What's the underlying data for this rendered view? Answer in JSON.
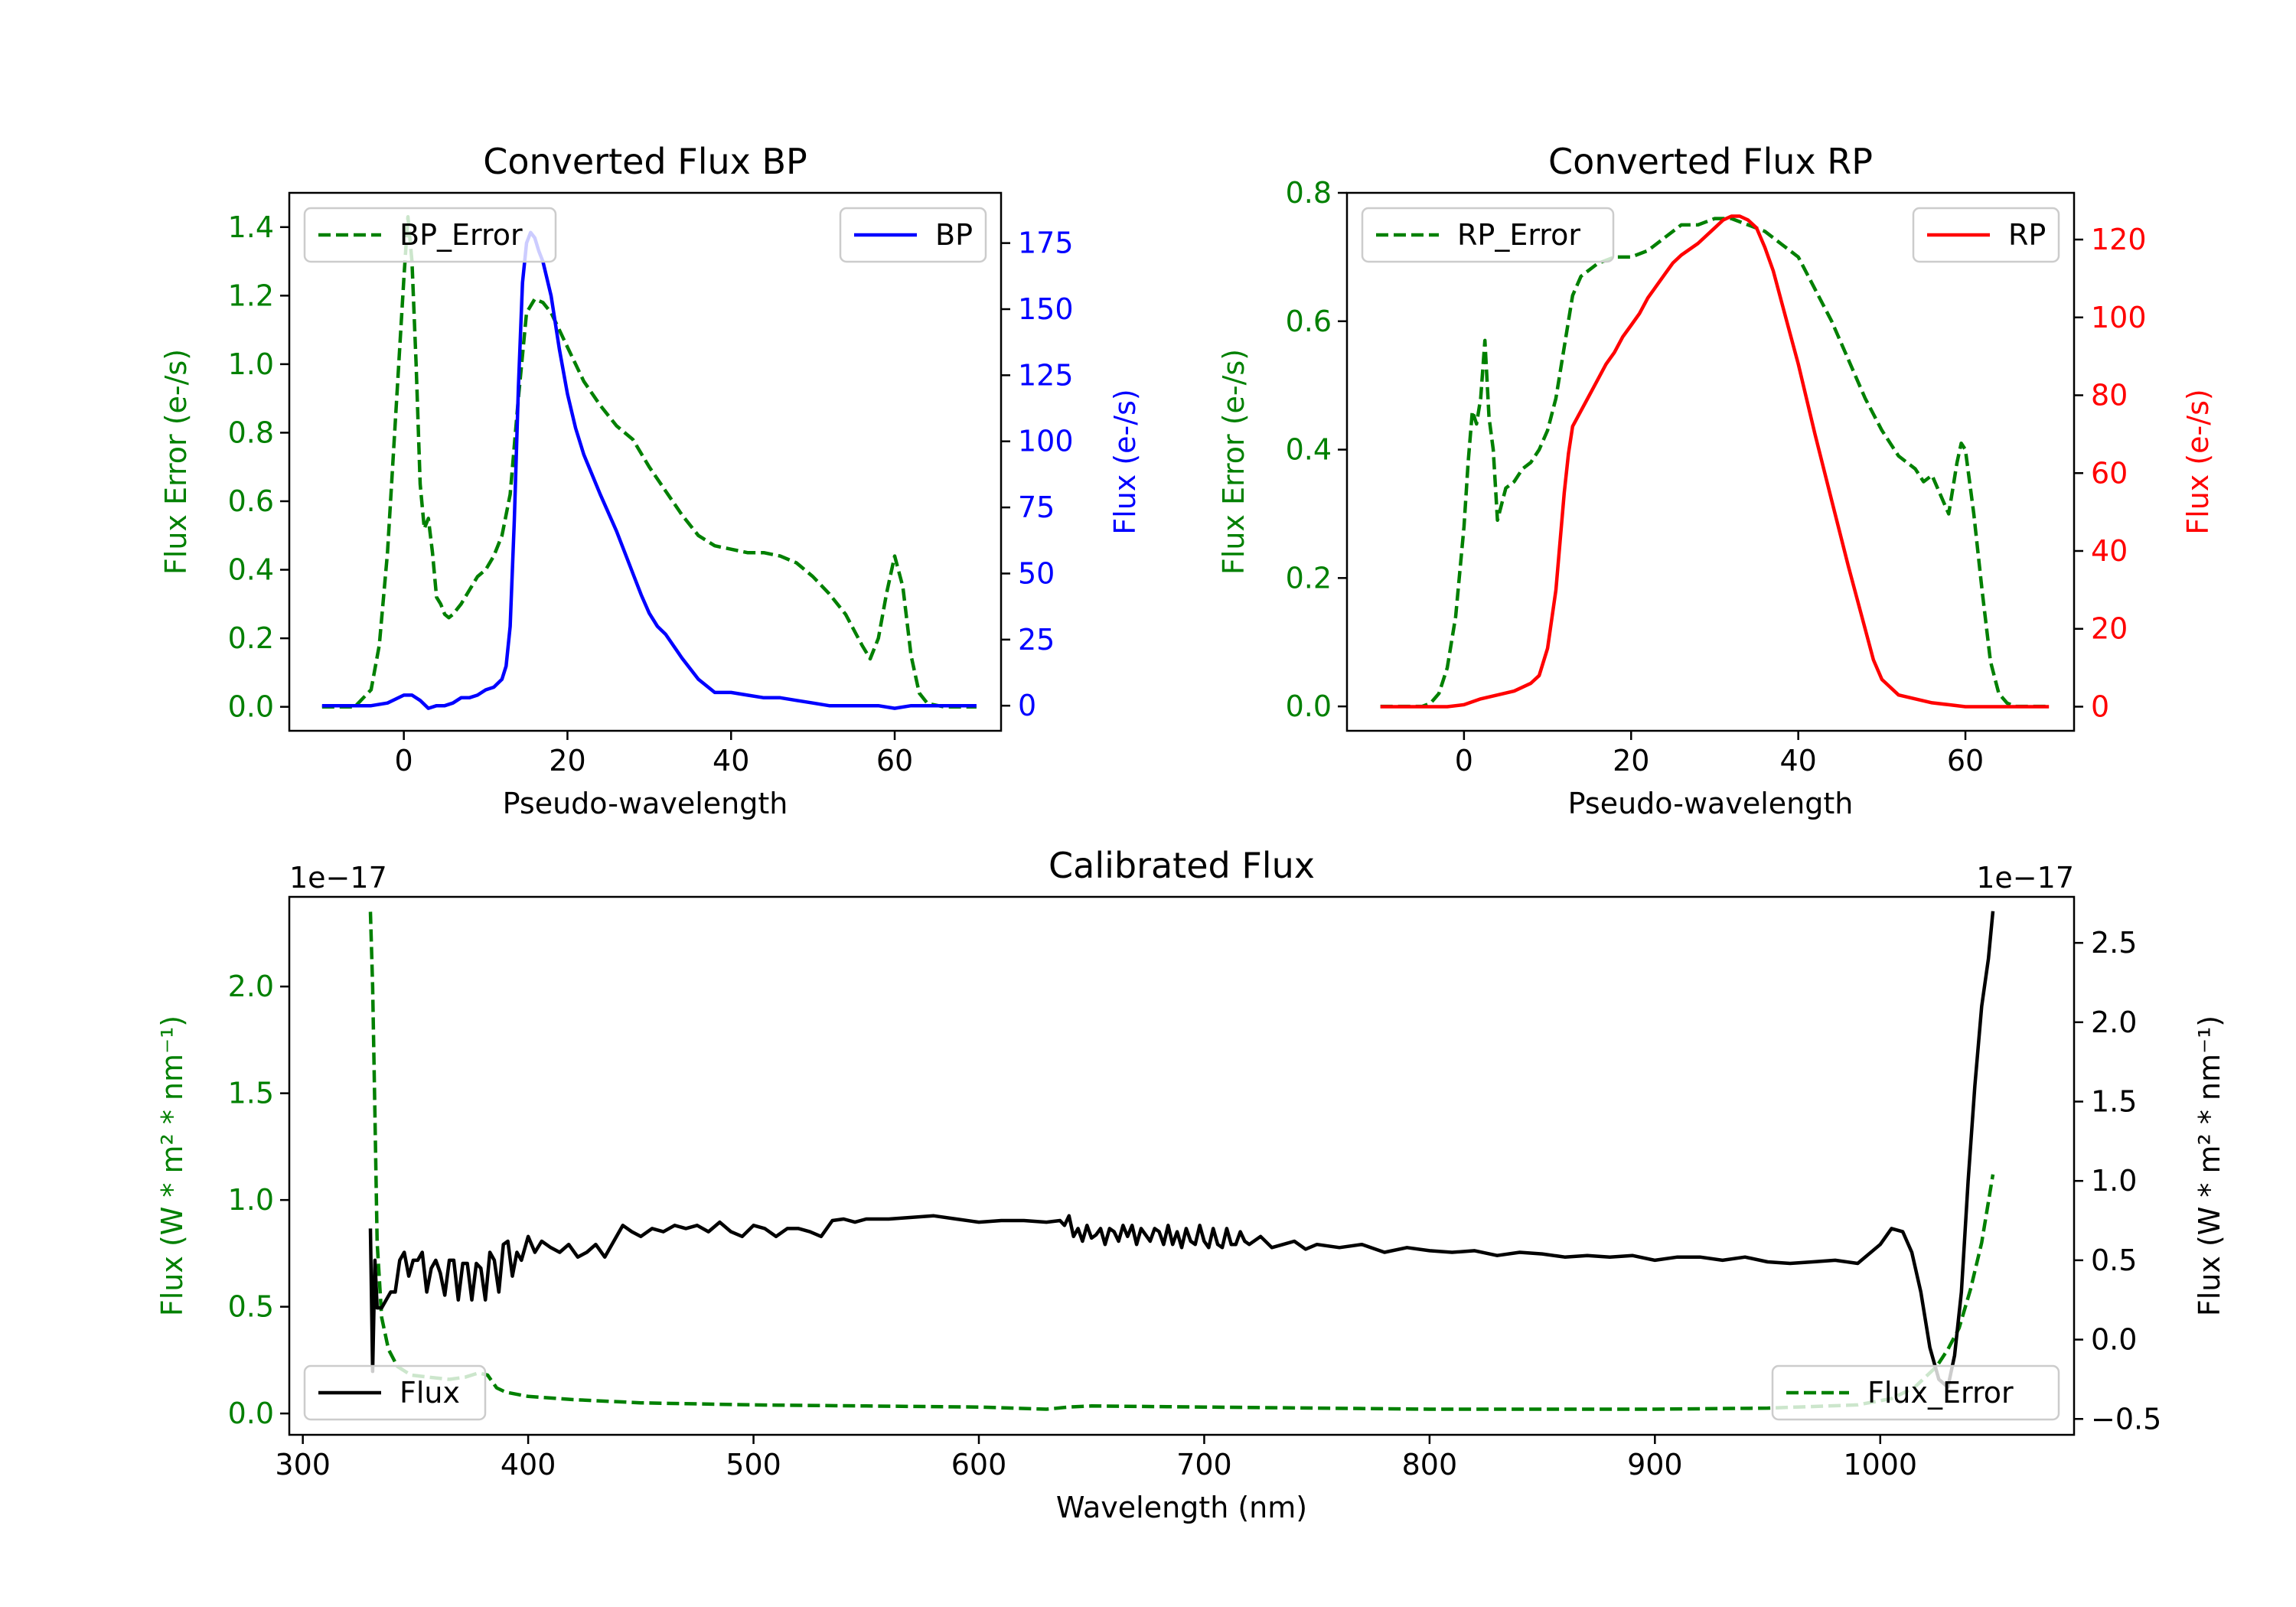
{
  "chart_data": [
    {
      "id": "bp",
      "type": "line",
      "title": "Converted Flux BP",
      "xlabel": "Pseudo-wavelength",
      "ylabel_left": "Flux Error (e-/s)",
      "ylabel_right": "Flux (e-/s)",
      "xlim": [
        -14,
        73
      ],
      "ylim_left": [
        -0.07,
        1.5
      ],
      "ylim_right": [
        -9.5,
        194
      ],
      "xticks": [
        0,
        20,
        40,
        60
      ],
      "yticks_left": [
        "0.0",
        "0.2",
        "0.4",
        "0.6",
        "0.8",
        "1.0",
        "1.2",
        "1.4"
      ],
      "yticks_right": [
        "0",
        "25",
        "50",
        "75",
        "100",
        "125",
        "150",
        "175"
      ],
      "colors": {
        "left": "#008000",
        "right": "#0000ff"
      },
      "series": [
        {
          "name": "BP_Error",
          "axis": "left",
          "style": "dashed",
          "color": "#008000",
          "x": [
            -10,
            -6,
            -4,
            -3,
            -2,
            -1,
            0,
            0.5,
            1,
            1.5,
            2,
            2.5,
            3,
            3.5,
            4,
            4.5,
            5,
            5.5,
            6,
            7,
            8,
            9,
            10,
            11,
            12,
            13,
            14,
            15,
            16,
            17,
            18,
            19,
            20,
            22,
            24,
            26,
            28,
            30,
            32,
            34,
            36,
            38,
            40,
            42,
            44,
            46,
            48,
            50,
            52,
            54,
            56,
            57,
            58,
            59,
            60,
            61,
            62,
            63,
            64,
            66,
            70
          ],
          "y": [
            0,
            0,
            0.05,
            0.18,
            0.45,
            0.85,
            1.25,
            1.43,
            1.3,
            1.0,
            0.65,
            0.52,
            0.55,
            0.45,
            0.32,
            0.3,
            0.27,
            0.26,
            0.27,
            0.3,
            0.34,
            0.38,
            0.4,
            0.44,
            0.5,
            0.62,
            0.9,
            1.15,
            1.19,
            1.18,
            1.15,
            1.1,
            1.05,
            0.95,
            0.88,
            0.82,
            0.78,
            0.7,
            0.63,
            0.56,
            0.5,
            0.47,
            0.46,
            0.45,
            0.45,
            0.44,
            0.42,
            0.38,
            0.33,
            0.27,
            0.18,
            0.14,
            0.2,
            0.33,
            0.44,
            0.35,
            0.15,
            0.04,
            0.01,
            0,
            0
          ]
        },
        {
          "name": "BP",
          "axis": "right",
          "style": "solid",
          "color": "#0000ff",
          "x": [
            -10,
            -4,
            -2,
            0,
            1,
            2,
            3,
            4,
            5,
            6,
            7,
            8,
            9,
            10,
            11,
            12,
            12.5,
            13,
            13.5,
            14,
            14.5,
            15,
            15.5,
            16,
            16.5,
            17,
            18,
            19,
            20,
            21,
            22,
            24,
            26,
            28,
            29,
            30,
            31,
            32,
            34,
            36,
            38,
            40,
            42,
            44,
            46,
            48,
            50,
            52,
            54,
            56,
            58,
            60,
            62,
            64,
            66,
            68,
            70
          ],
          "y": [
            0,
            0,
            1,
            4,
            4,
            2,
            -1,
            0,
            0,
            1,
            3,
            3,
            4,
            6,
            7,
            10,
            15,
            30,
            70,
            120,
            160,
            175,
            179,
            177,
            172,
            168,
            155,
            135,
            118,
            105,
            95,
            80,
            66,
            50,
            42,
            35,
            30,
            27,
            18,
            10,
            5,
            5,
            4,
            3,
            3,
            2,
            1,
            0,
            0,
            0,
            0,
            -1,
            0,
            0,
            0,
            0,
            0
          ]
        }
      ],
      "legend": [
        {
          "label": "BP_Error",
          "position": "upper-left"
        },
        {
          "label": "BP",
          "position": "upper-right"
        }
      ]
    },
    {
      "id": "rp",
      "type": "line",
      "title": "Converted Flux RP",
      "xlabel": "Pseudo-wavelength",
      "ylabel_left": "Flux Error (e-/s)",
      "ylabel_right": "Flux (e-/s)",
      "xlim": [
        -14,
        73
      ],
      "ylim_left": [
        -0.038,
        0.8
      ],
      "ylim_right": [
        -6.2,
        132
      ],
      "xticks": [
        0,
        20,
        40,
        60
      ],
      "yticks_left": [
        "0.0",
        "0.2",
        "0.4",
        "0.6",
        "0.8"
      ],
      "yticks_right": [
        "0",
        "20",
        "40",
        "60",
        "80",
        "100",
        "120"
      ],
      "colors": {
        "left": "#008000",
        "right": "#ff0000"
      },
      "series": [
        {
          "name": "RP_Error",
          "axis": "left",
          "style": "dashed",
          "color": "#008000",
          "x": [
            -10,
            -5,
            -4,
            -3,
            -2,
            -1,
            0,
            0.5,
            1,
            1.5,
            2,
            2.5,
            3,
            3.5,
            4,
            5,
            6,
            7,
            8,
            9,
            10,
            11,
            12,
            13,
            14,
            16,
            18,
            20,
            22,
            24,
            26,
            28,
            30,
            32,
            34,
            36,
            38,
            40,
            42,
            44,
            46,
            48,
            50,
            52,
            54,
            55,
            56,
            57,
            58,
            58.5,
            59,
            59.5,
            60,
            61,
            62,
            63,
            64,
            65,
            66,
            70
          ],
          "y": [
            0,
            0,
            0.005,
            0.02,
            0.06,
            0.14,
            0.28,
            0.38,
            0.46,
            0.44,
            0.48,
            0.57,
            0.45,
            0.4,
            0.29,
            0.34,
            0.35,
            0.37,
            0.38,
            0.4,
            0.43,
            0.48,
            0.56,
            0.64,
            0.67,
            0.69,
            0.7,
            0.7,
            0.71,
            0.73,
            0.75,
            0.75,
            0.76,
            0.76,
            0.75,
            0.74,
            0.72,
            0.7,
            0.65,
            0.6,
            0.54,
            0.48,
            0.43,
            0.39,
            0.37,
            0.35,
            0.36,
            0.33,
            0.3,
            0.34,
            0.38,
            0.41,
            0.4,
            0.3,
            0.18,
            0.07,
            0.02,
            0.005,
            0,
            0
          ]
        },
        {
          "name": "RP",
          "axis": "right",
          "style": "solid",
          "color": "#ff0000",
          "x": [
            -10,
            -2,
            0,
            2,
            4,
            6,
            8,
            9,
            10,
            11,
            12,
            12.5,
            13,
            14,
            15,
            16,
            17,
            18,
            19,
            20,
            21,
            22,
            23,
            24,
            25,
            26,
            28,
            30,
            31,
            32,
            33,
            34,
            35,
            36,
            37,
            38,
            39,
            40,
            42,
            44,
            46,
            48,
            49,
            50,
            51,
            52,
            54,
            56,
            58,
            60,
            62,
            64,
            66,
            70
          ],
          "y": [
            0,
            0,
            0.5,
            2,
            3,
            4,
            6,
            8,
            15,
            30,
            55,
            65,
            72,
            76,
            80,
            84,
            88,
            91,
            95,
            98,
            101,
            105,
            108,
            111,
            114,
            116,
            119,
            123,
            125,
            126,
            126,
            125,
            123,
            118,
            112,
            104,
            96,
            88,
            70,
            53,
            36,
            20,
            12,
            7,
            5,
            3,
            2,
            1,
            0.5,
            0,
            0,
            0,
            0,
            0
          ]
        }
      ],
      "legend": [
        {
          "label": "RP_Error",
          "position": "upper-left"
        },
        {
          "label": "RP",
          "position": "upper-right"
        }
      ]
    },
    {
      "id": "cal",
      "type": "line",
      "title": "Calibrated Flux",
      "xlabel": "Wavelength (nm)",
      "ylabel_left": "Flux (W * m² * nm⁻¹)",
      "ylabel_right": "Flux (W * m² * nm⁻¹)",
      "offset_left": "1e−17",
      "offset_right": "1e−17",
      "xlim": [
        294,
        1086
      ],
      "ylim_left": [
        -0.1,
        2.42
      ],
      "ylim_right": [
        -0.6,
        2.79
      ],
      "xticks": [
        300,
        400,
        500,
        600,
        700,
        800,
        900,
        1000
      ],
      "yticks_left": [
        "0.0",
        "0.5",
        "1.0",
        "1.5",
        "2.0"
      ],
      "yticks_right": [
        "−0.5",
        "0.0",
        "0.5",
        "1.0",
        "1.5",
        "2.0",
        "2.5"
      ],
      "colors": {
        "left": "#008000",
        "right": "#000000"
      },
      "series": [
        {
          "name": "Flux_Error",
          "axis": "left",
          "style": "dashed",
          "color": "#008000",
          "x": [
            330,
            331,
            332,
            333,
            335,
            338,
            342,
            348,
            356,
            365,
            372,
            378,
            382,
            386,
            390,
            400,
            420,
            450,
            500,
            550,
            600,
            630,
            640,
            650,
            700,
            800,
            900,
            950,
            990,
            1005,
            1015,
            1025,
            1030,
            1035,
            1040,
            1045,
            1050
          ],
          "y": [
            2.35,
            2.0,
            1.4,
            0.8,
            0.45,
            0.3,
            0.22,
            0.18,
            0.17,
            0.16,
            0.17,
            0.19,
            0.18,
            0.12,
            0.1,
            0.08,
            0.065,
            0.05,
            0.04,
            0.035,
            0.03,
            0.02,
            0.03,
            0.035,
            0.03,
            0.02,
            0.02,
            0.025,
            0.04,
            0.07,
            0.12,
            0.22,
            0.3,
            0.4,
            0.58,
            0.8,
            1.12
          ]
        },
        {
          "name": "Flux",
          "axis": "right",
          "style": "solid",
          "color": "#000000",
          "x": [
            330,
            331,
            332,
            333,
            335,
            337,
            339,
            341,
            343,
            345,
            347,
            349,
            351,
            353,
            355,
            357,
            359,
            361,
            363,
            365,
            367,
            369,
            371,
            373,
            375,
            377,
            379,
            381,
            383,
            385,
            387,
            389,
            391,
            393,
            395,
            397,
            400,
            403,
            406,
            410,
            414,
            418,
            422,
            426,
            430,
            434,
            438,
            442,
            446,
            450,
            455,
            460,
            465,
            470,
            475,
            480,
            485,
            490,
            495,
            500,
            505,
            510,
            515,
            520,
            525,
            530,
            535,
            540,
            545,
            550,
            560,
            570,
            580,
            590,
            600,
            610,
            620,
            630,
            636,
            638,
            640,
            642,
            644,
            646,
            648,
            650,
            652,
            654,
            656,
            658,
            660,
            662,
            664,
            666,
            668,
            670,
            672,
            674,
            676,
            678,
            680,
            682,
            684,
            686,
            688,
            690,
            692,
            694,
            696,
            698,
            700,
            702,
            704,
            706,
            708,
            710,
            712,
            714,
            716,
            718,
            720,
            725,
            730,
            735,
            740,
            745,
            750,
            760,
            770,
            780,
            790,
            800,
            810,
            820,
            830,
            840,
            850,
            860,
            870,
            880,
            890,
            900,
            910,
            920,
            930,
            940,
            950,
            960,
            970,
            980,
            990,
            1000,
            1005,
            1010,
            1014,
            1018,
            1022,
            1026,
            1030,
            1033,
            1036,
            1039,
            1042,
            1045,
            1048,
            1050
          ],
          "y": [
            0.7,
            -0.2,
            0.5,
            0.2,
            0.2,
            0.25,
            0.3,
            0.3,
            0.5,
            0.55,
            0.4,
            0.5,
            0.5,
            0.55,
            0.3,
            0.45,
            0.5,
            0.42,
            0.28,
            0.5,
            0.5,
            0.25,
            0.48,
            0.48,
            0.25,
            0.48,
            0.45,
            0.25,
            0.55,
            0.5,
            0.3,
            0.6,
            0.62,
            0.4,
            0.55,
            0.5,
            0.65,
            0.55,
            0.62,
            0.58,
            0.55,
            0.6,
            0.52,
            0.55,
            0.6,
            0.52,
            0.62,
            0.72,
            0.68,
            0.65,
            0.7,
            0.68,
            0.72,
            0.7,
            0.72,
            0.68,
            0.74,
            0.68,
            0.65,
            0.72,
            0.7,
            0.65,
            0.7,
            0.7,
            0.68,
            0.65,
            0.75,
            0.76,
            0.74,
            0.76,
            0.76,
            0.77,
            0.78,
            0.76,
            0.74,
            0.75,
            0.75,
            0.74,
            0.75,
            0.72,
            0.78,
            0.65,
            0.7,
            0.62,
            0.72,
            0.64,
            0.66,
            0.7,
            0.6,
            0.7,
            0.68,
            0.62,
            0.72,
            0.65,
            0.72,
            0.6,
            0.7,
            0.66,
            0.62,
            0.7,
            0.68,
            0.6,
            0.72,
            0.6,
            0.68,
            0.58,
            0.7,
            0.62,
            0.6,
            0.72,
            0.62,
            0.58,
            0.7,
            0.6,
            0.58,
            0.7,
            0.6,
            0.6,
            0.68,
            0.62,
            0.6,
            0.65,
            0.58,
            0.6,
            0.62,
            0.57,
            0.6,
            0.58,
            0.6,
            0.55,
            0.58,
            0.56,
            0.55,
            0.56,
            0.53,
            0.55,
            0.54,
            0.52,
            0.53,
            0.52,
            0.53,
            0.5,
            0.52,
            0.52,
            0.5,
            0.52,
            0.49,
            0.48,
            0.49,
            0.5,
            0.48,
            0.6,
            0.7,
            0.68,
            0.55,
            0.3,
            -0.05,
            -0.25,
            -0.3,
            -0.1,
            0.3,
            1.0,
            1.6,
            2.1,
            2.4,
            2.7
          ]
        }
      ],
      "legend": [
        {
          "label": "Flux",
          "position": "lower-left"
        },
        {
          "label": "Flux_Error",
          "position": "lower-right"
        }
      ]
    }
  ]
}
